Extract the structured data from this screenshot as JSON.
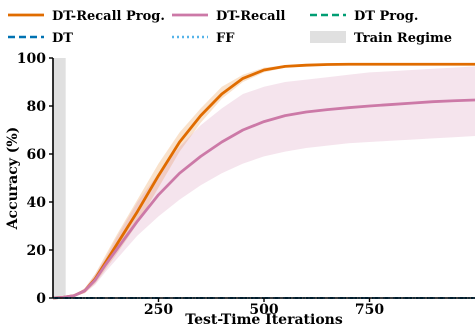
{
  "chart_data": {
    "type": "line",
    "xlabel": "Test-Time Iterations",
    "ylabel": "Accuracy (%)",
    "xlim": [
      0,
      1000
    ],
    "ylim": [
      0,
      100
    ],
    "xticks": [
      250,
      500,
      750
    ],
    "yticks": [
      0,
      20,
      40,
      60,
      80,
      100
    ],
    "grid": false,
    "legend_position": "top",
    "train_regime": {
      "name": "Train Regime",
      "x_range": [
        0,
        30
      ],
      "color": "#e0e0e0"
    },
    "series": [
      {
        "name": "DT-Recall Prog.",
        "color": "#e06c00",
        "style": "solid",
        "x": [
          0,
          25,
          50,
          75,
          100,
          125,
          150,
          200,
          250,
          300,
          350,
          400,
          450,
          500,
          550,
          600,
          650,
          700,
          750,
          800,
          850,
          900,
          950,
          1000
        ],
        "values": [
          0,
          0.3,
          1,
          3,
          8,
          15,
          22,
          36,
          51,
          65,
          76,
          85,
          91.5,
          95,
          96.5,
          97,
          97.3,
          97.4,
          97.4,
          97.4,
          97.4,
          97.4,
          97.4,
          97.4
        ],
        "band_lower": [
          0,
          0.2,
          0.7,
          2,
          6,
          12,
          18,
          31,
          46,
          61,
          73,
          83,
          90,
          94,
          96,
          96.5,
          96.9,
          97,
          97,
          97,
          97,
          97,
          97,
          97
        ],
        "band_upper": [
          0,
          0.5,
          1.3,
          4,
          10,
          18,
          26,
          41,
          56,
          69,
          79,
          88,
          93,
          96,
          97,
          97.5,
          97.7,
          97.8,
          97.8,
          97.8,
          97.8,
          97.8,
          97.8,
          97.8
        ]
      },
      {
        "name": "DT-Recall",
        "color": "#cc79a7",
        "style": "solid",
        "x": [
          0,
          25,
          50,
          75,
          100,
          125,
          150,
          200,
          250,
          300,
          350,
          400,
          450,
          500,
          550,
          600,
          650,
          700,
          750,
          800,
          850,
          900,
          950,
          1000
        ],
        "values": [
          0,
          0.3,
          1,
          3,
          7.5,
          14,
          20,
          32,
          43,
          52,
          59,
          65,
          70,
          73.5,
          76,
          77.5,
          78.5,
          79.3,
          80,
          80.6,
          81.2,
          81.8,
          82.2,
          82.5
        ],
        "band_lower": [
          0,
          0.2,
          0.6,
          2,
          5.5,
          11,
          16,
          26,
          34,
          41,
          47,
          52,
          56,
          59,
          61,
          62.5,
          63.5,
          64.5,
          65,
          65.5,
          66,
          66.5,
          67,
          67.5
        ],
        "band_upper": [
          0,
          0.5,
          1.5,
          4,
          10,
          17,
          25,
          40,
          52,
          63,
          72,
          79,
          85,
          88,
          90,
          91,
          92,
          93,
          94,
          94.5,
          95,
          95.5,
          96,
          96.5
        ]
      },
      {
        "name": "DT Prog.",
        "color": "#009e73",
        "style": "dashed",
        "x": [
          0,
          1000
        ],
        "values": [
          0,
          0
        ]
      },
      {
        "name": "DT",
        "color": "#0072b2",
        "style": "dashed",
        "x": [
          0,
          1000
        ],
        "values": [
          0,
          0
        ]
      },
      {
        "name": "FF",
        "color": "#56b4e9",
        "style": "dotted",
        "x": [
          0,
          1000
        ],
        "values": [
          0,
          0
        ]
      }
    ]
  }
}
